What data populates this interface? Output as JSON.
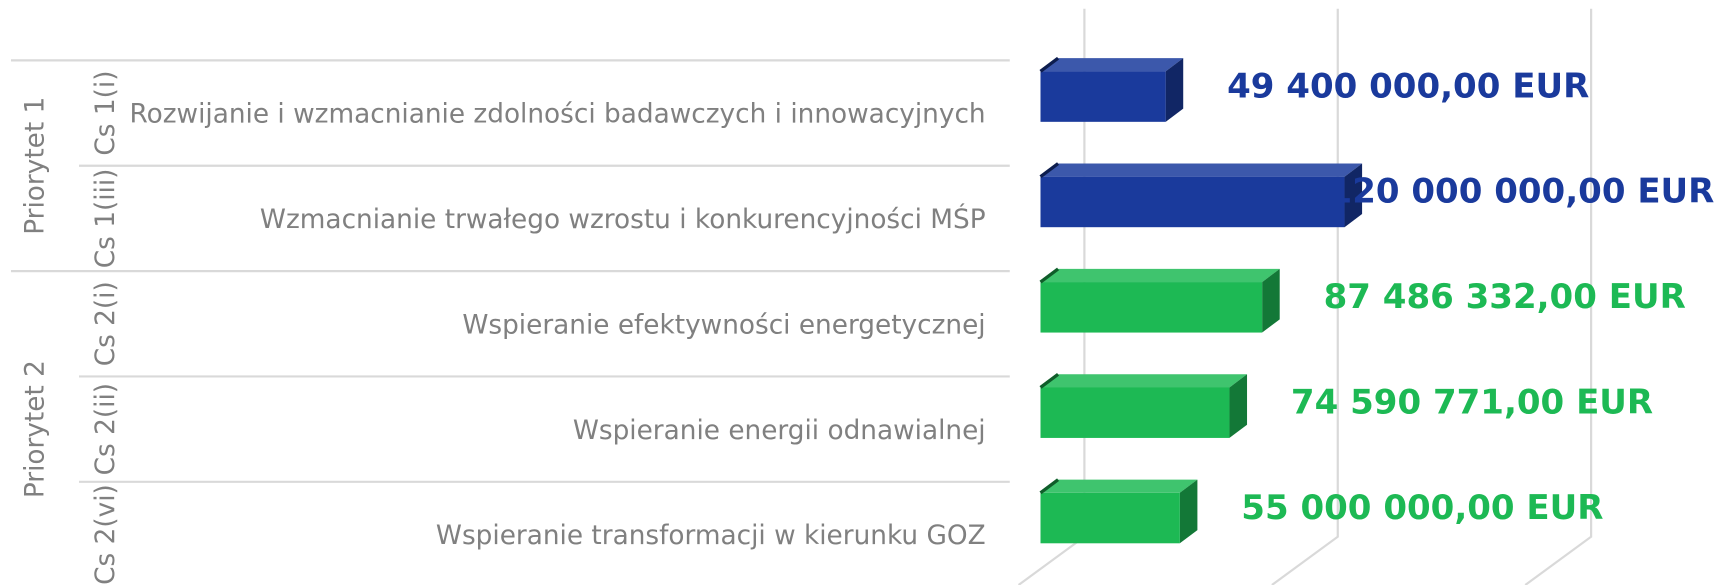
{
  "chart_data": {
    "type": "bar",
    "orientation": "horizontal",
    "series": [
      {
        "name": "Priorytet 1",
        "color": "#1a3a9c",
        "codes": [
          "Cs 1(i)",
          "Cs 1(iii)"
        ],
        "categories": [
          "Rozwijanie i wzmacnianie zdolności badawczych i innowacyjnych",
          "Wzmacnianie trwałego wzrostu i konkurencyjności MŚP"
        ],
        "values": [
          49400000,
          120000000
        ],
        "value_labels": [
          "49 400 000,00 EUR",
          "120 000 000,00 EUR"
        ]
      },
      {
        "name": "Priorytet 2",
        "color": "#1db954",
        "codes": [
          "Cs 2(i)",
          "Cs 2(ii)",
          "Cs 2(vi)"
        ],
        "categories": [
          "Wspieranie efektywności energetycznej",
          "Wspieranie energii odnawialnej",
          "Wspieranie transformacji w kierunku GOZ"
        ],
        "values": [
          87486332,
          74590771,
          55000000
        ],
        "value_labels": [
          "87 486 332,00 EUR",
          "74 590 771,00 EUR",
          "55 000 000,00 EUR"
        ]
      }
    ],
    "xlim": [
      0,
      200000000
    ],
    "xticks": [
      0,
      100000000,
      200000000
    ],
    "grid": true
  }
}
